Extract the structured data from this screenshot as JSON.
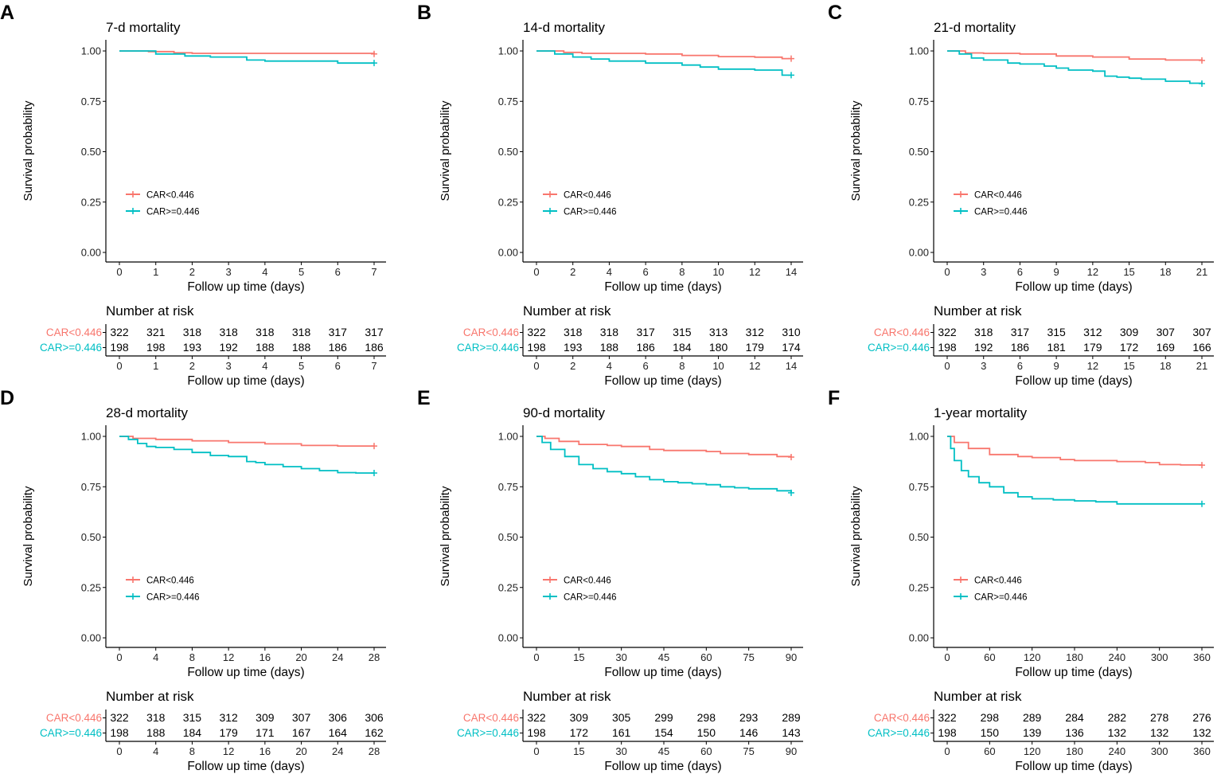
{
  "colors": {
    "low": "#F8766D",
    "high": "#00BFC4",
    "axis": "#000000"
  },
  "chart_data": [
    {
      "panel": "A",
      "title": "7-d mortality",
      "type": "line",
      "ylabel": "Survival probability",
      "xlabel": "Follow up time (days)",
      "xlim": [
        0,
        7
      ],
      "ylim": [
        0,
        1
      ],
      "xticks": [
        0,
        1,
        2,
        3,
        4,
        5,
        6,
        7
      ],
      "yticks": [
        "0.00",
        "0.25",
        "0.50",
        "0.75",
        "1.00"
      ],
      "legend": [
        "CAR<0.446",
        "CAR>=0.446"
      ],
      "series": [
        {
          "name": "CAR<0.446",
          "x": [
            0,
            0.8,
            1.5,
            2,
            7
          ],
          "y": [
            1,
            0.997,
            0.991,
            0.988,
            0.985
          ]
        },
        {
          "name": "CAR>=0.446",
          "x": [
            0,
            1,
            1.8,
            2.5,
            3.5,
            4,
            6,
            7
          ],
          "y": [
            1,
            0.985,
            0.975,
            0.97,
            0.955,
            0.95,
            0.94,
            0.94
          ]
        }
      ],
      "risk_title": "Number at risk",
      "risk_labels": [
        "CAR<0.446",
        "CAR>=0.446"
      ],
      "risk_counts": [
        [
          322,
          321,
          318,
          318,
          318,
          318,
          317,
          317
        ],
        [
          198,
          198,
          193,
          192,
          188,
          188,
          186,
          186
        ]
      ]
    },
    {
      "panel": "B",
      "title": "14-d mortality",
      "type": "line",
      "ylabel": "Survival probability",
      "xlabel": "Follow up time (days)",
      "xlim": [
        0,
        14
      ],
      "ylim": [
        0,
        1
      ],
      "xticks": [
        0,
        2,
        4,
        6,
        8,
        10,
        12,
        14
      ],
      "yticks": [
        "0.00",
        "0.25",
        "0.50",
        "0.75",
        "1.00"
      ],
      "legend": [
        "CAR<0.446",
        "CAR>=0.446"
      ],
      "series": [
        {
          "name": "CAR<0.446",
          "x": [
            0,
            1.5,
            2.5,
            6,
            8,
            10,
            12,
            13.5,
            14
          ],
          "y": [
            1,
            0.993,
            0.988,
            0.985,
            0.978,
            0.972,
            0.969,
            0.962,
            0.962
          ]
        },
        {
          "name": "CAR>=0.446",
          "x": [
            0,
            1,
            2,
            3,
            4,
            6,
            8,
            9,
            10,
            12,
            13,
            13.5,
            14
          ],
          "y": [
            1,
            0.985,
            0.97,
            0.96,
            0.95,
            0.94,
            0.93,
            0.92,
            0.91,
            0.905,
            0.905,
            0.88,
            0.88
          ]
        }
      ],
      "risk_title": "Number at risk",
      "risk_labels": [
        "CAR<0.446",
        "CAR>=0.446"
      ],
      "risk_counts": [
        [
          322,
          318,
          318,
          317,
          315,
          313,
          312,
          310
        ],
        [
          198,
          193,
          188,
          186,
          184,
          180,
          179,
          174
        ]
      ]
    },
    {
      "panel": "C",
      "title": "21-d mortality",
      "type": "line",
      "ylabel": "Survival probability",
      "xlabel": "Follow up time (days)",
      "xlim": [
        0,
        21
      ],
      "ylim": [
        0,
        1
      ],
      "xticks": [
        0,
        3,
        6,
        9,
        12,
        15,
        18,
        21
      ],
      "yticks": [
        "0.00",
        "0.25",
        "0.50",
        "0.75",
        "1.00"
      ],
      "legend": [
        "CAR<0.446",
        "CAR>=0.446"
      ],
      "series": [
        {
          "name": "CAR<0.446",
          "x": [
            0,
            1.5,
            3,
            6,
            9,
            12,
            15,
            18,
            21
          ],
          "y": [
            1,
            0.99,
            0.988,
            0.985,
            0.975,
            0.97,
            0.96,
            0.955,
            0.953
          ]
        },
        {
          "name": "CAR>=0.446",
          "x": [
            0,
            1,
            2,
            3,
            5,
            6,
            8,
            9,
            10,
            12,
            13,
            14,
            15,
            16,
            18,
            20,
            21
          ],
          "y": [
            1,
            0.985,
            0.965,
            0.955,
            0.94,
            0.935,
            0.925,
            0.915,
            0.905,
            0.9,
            0.875,
            0.87,
            0.865,
            0.86,
            0.85,
            0.84,
            0.838
          ]
        }
      ],
      "risk_title": "Number at risk",
      "risk_labels": [
        "CAR<0.446",
        "CAR>=0.446"
      ],
      "risk_counts": [
        [
          322,
          318,
          317,
          315,
          312,
          309,
          307,
          307
        ],
        [
          198,
          192,
          186,
          181,
          179,
          172,
          169,
          166
        ]
      ]
    },
    {
      "panel": "D",
      "title": "28-d mortality",
      "type": "line",
      "ylabel": "Survival probability",
      "xlabel": "Follow up time (days)",
      "xlim": [
        0,
        28
      ],
      "ylim": [
        0,
        1
      ],
      "xticks": [
        0,
        4,
        8,
        12,
        16,
        20,
        24,
        28
      ],
      "yticks": [
        "0.00",
        "0.25",
        "0.50",
        "0.75",
        "1.00"
      ],
      "legend": [
        "CAR<0.446",
        "CAR>=0.446"
      ],
      "series": [
        {
          "name": "CAR<0.446",
          "x": [
            0,
            1.5,
            4,
            8,
            12,
            16,
            20,
            24,
            28
          ],
          "y": [
            1,
            0.99,
            0.985,
            0.978,
            0.97,
            0.963,
            0.955,
            0.952,
            0.952
          ]
        },
        {
          "name": "CAR>=0.446",
          "x": [
            0,
            1,
            2,
            3,
            4,
            6,
            8,
            10,
            12,
            13,
            14,
            15,
            16,
            18,
            20,
            22,
            24,
            26,
            28
          ],
          "y": [
            1,
            0.985,
            0.965,
            0.95,
            0.945,
            0.935,
            0.92,
            0.905,
            0.9,
            0.9,
            0.875,
            0.87,
            0.86,
            0.85,
            0.84,
            0.83,
            0.82,
            0.818,
            0.818
          ]
        }
      ],
      "risk_title": "Number at risk",
      "risk_labels": [
        "CAR<0.446",
        "CAR>=0.446"
      ],
      "risk_counts": [
        [
          322,
          318,
          315,
          312,
          309,
          307,
          306,
          306
        ],
        [
          198,
          188,
          184,
          179,
          171,
          167,
          164,
          162
        ]
      ]
    },
    {
      "panel": "E",
      "title": "90-d mortality",
      "type": "line",
      "ylabel": "Survival probability",
      "xlabel": "Follow up time (days)",
      "xlim": [
        0,
        90
      ],
      "ylim": [
        0,
        1
      ],
      "xticks": [
        0,
        15,
        30,
        45,
        60,
        75,
        90
      ],
      "yticks": [
        "0.00",
        "0.25",
        "0.50",
        "0.75",
        "1.00"
      ],
      "legend": [
        "CAR<0.446",
        "CAR>=0.446"
      ],
      "series": [
        {
          "name": "CAR<0.446",
          "x": [
            0,
            3,
            8,
            15,
            25,
            30,
            40,
            45,
            55,
            60,
            65,
            75,
            85,
            90
          ],
          "y": [
            1,
            0.99,
            0.975,
            0.96,
            0.955,
            0.95,
            0.935,
            0.93,
            0.93,
            0.925,
            0.915,
            0.91,
            0.9,
            0.897
          ]
        },
        {
          "name": "CAR>=0.446",
          "x": [
            0,
            2,
            5,
            10,
            15,
            20,
            25,
            30,
            35,
            40,
            45,
            50,
            55,
            60,
            65,
            70,
            75,
            85,
            90
          ],
          "y": [
            1,
            0.97,
            0.935,
            0.9,
            0.86,
            0.84,
            0.825,
            0.815,
            0.8,
            0.785,
            0.775,
            0.77,
            0.765,
            0.76,
            0.75,
            0.745,
            0.74,
            0.73,
            0.72
          ]
        }
      ],
      "risk_title": "Number at risk",
      "risk_labels": [
        "CAR<0.446",
        "CAR>=0.446"
      ],
      "risk_counts": [
        [
          322,
          309,
          305,
          299,
          298,
          293,
          289
        ],
        [
          198,
          172,
          161,
          154,
          150,
          146,
          143
        ]
      ]
    },
    {
      "panel": "F",
      "title": "1-year mortality",
      "type": "line",
      "ylabel": "Survival probability",
      "xlabel": "Follow up time (days)",
      "xlim": [
        0,
        360
      ],
      "ylim": [
        0,
        1
      ],
      "xticks": [
        0,
        60,
        120,
        180,
        240,
        300,
        360
      ],
      "yticks": [
        "0.00",
        "0.25",
        "0.50",
        "0.75",
        "1.00"
      ],
      "legend": [
        "CAR<0.446",
        "CAR>=0.446"
      ],
      "series": [
        {
          "name": "CAR<0.446",
          "x": [
            0,
            10,
            30,
            60,
            100,
            120,
            160,
            180,
            240,
            280,
            300,
            330,
            360
          ],
          "y": [
            1,
            0.97,
            0.94,
            0.91,
            0.9,
            0.895,
            0.885,
            0.88,
            0.875,
            0.87,
            0.86,
            0.858,
            0.857
          ]
        },
        {
          "name": "CAR>=0.446",
          "x": [
            0,
            5,
            10,
            20,
            30,
            45,
            60,
            80,
            100,
            120,
            150,
            180,
            210,
            240,
            300,
            360
          ],
          "y": [
            1,
            0.94,
            0.88,
            0.83,
            0.8,
            0.77,
            0.75,
            0.72,
            0.7,
            0.69,
            0.685,
            0.68,
            0.675,
            0.665,
            0.665,
            0.665
          ]
        }
      ],
      "risk_title": "Number at risk",
      "risk_labels": [
        "CAR<0.446",
        "CAR>=0.446"
      ],
      "risk_counts": [
        [
          322,
          298,
          289,
          284,
          282,
          278,
          276
        ],
        [
          198,
          150,
          139,
          136,
          132,
          132,
          132
        ]
      ]
    }
  ]
}
